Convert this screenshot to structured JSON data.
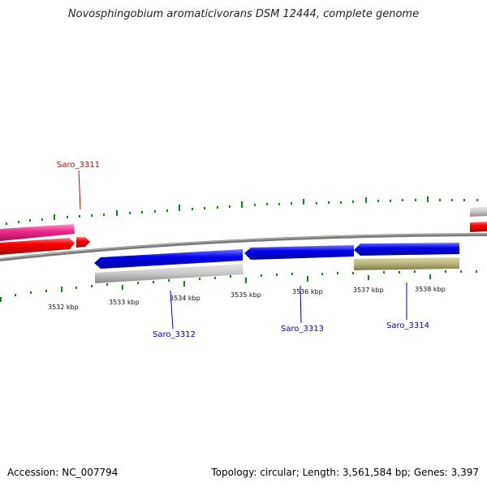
{
  "title": "Novosphingobium aromaticivorans DSM 12444, complete genome",
  "footer": {
    "accession": "Accession: NC_007794",
    "summary": "Topology: circular; Length: 3,561,584 bp; Genes: 3,397"
  },
  "colors": {
    "forward_gene": "#ee0000",
    "forward_pink": "#ee2d8c",
    "reverse_gene": "#0000ee",
    "gray_feature": "#c0c0c0",
    "olive_feature": "#b8b47c",
    "backbone": "#7a7a7a",
    "ticks": "#118811",
    "label_red": "#cc0000",
    "label_blue": "#0000bb"
  },
  "scale_labels": [
    "3532 kbp",
    "3533 kbp",
    "3534 kbp",
    "3535 kbp",
    "3536 kbp",
    "3537 kbp",
    "3538 kbp"
  ],
  "gene_labels": [
    "Saro_3311",
    "Saro_3312",
    "Saro_3313",
    "Saro_3314"
  ]
}
